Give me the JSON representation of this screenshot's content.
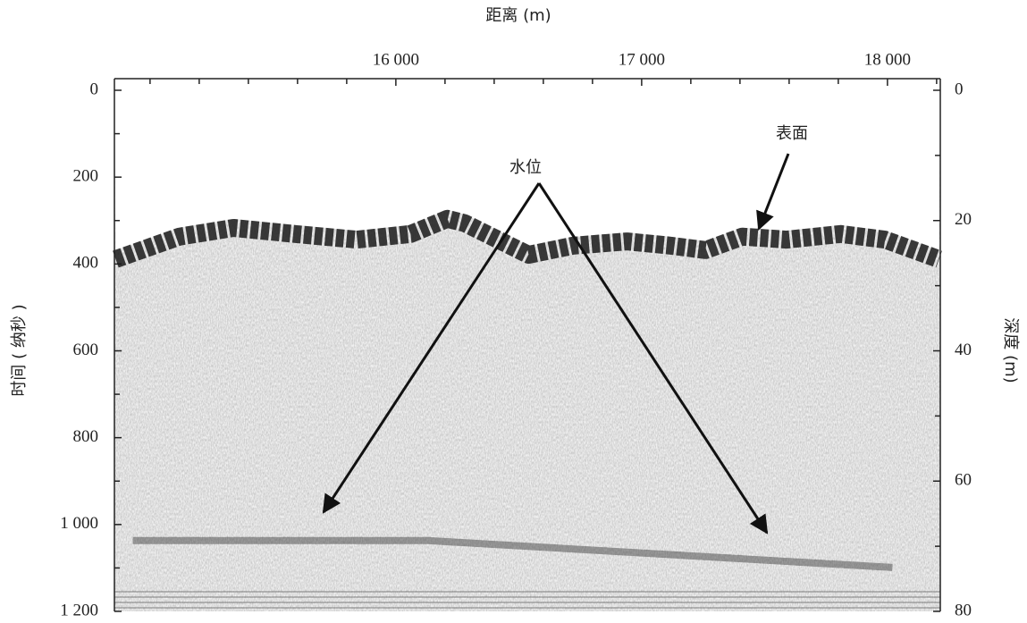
{
  "chart_data": {
    "type": "radargram",
    "x_label": "距离 (m)",
    "y_label": "时间 ( 纳秒 )",
    "y2_label": "深度 (m)",
    "xlim": [
      14855,
      18215
    ],
    "xticks": [
      {
        "value": 16000,
        "label": "16 000"
      },
      {
        "value": 17000,
        "label": "17 000"
      },
      {
        "value": 18000,
        "label": "18 000"
      }
    ],
    "xminor": [
      15000,
      15200,
      15400,
      15600,
      15800,
      16200,
      16400,
      16600,
      16800,
      17200,
      17400,
      17600,
      17800,
      18200
    ],
    "ylim": [
      0,
      1200
    ],
    "yticks": [
      0,
      200,
      400,
      600,
      800,
      {
        "value": 1000,
        "label": "1 000"
      },
      {
        "value": 1200,
        "label": "1 200"
      }
    ],
    "yminor": [
      100,
      300,
      500,
      700,
      900,
      1100
    ],
    "y2lim": [
      0,
      80
    ],
    "y2ticks": [
      0,
      20,
      40,
      60,
      80
    ],
    "y2minor": [
      10,
      30,
      50,
      70
    ],
    "surface": {
      "x": [
        14860,
        15120,
        15340,
        15590,
        15840,
        16060,
        16210,
        16280,
        16540,
        16720,
        16940,
        17120,
        17260,
        17410,
        17590,
        17810,
        17990,
        18210
      ],
      "values": [
        389,
        337,
        317,
        331,
        344,
        331,
        296,
        306,
        379,
        358,
        348,
        358,
        368,
        337,
        344,
        331,
        344,
        389
      ]
    },
    "water": {
      "x": [
        14930,
        16130,
        18020
      ],
      "values": [
        1037,
        1037,
        1099
      ]
    },
    "annotations": [
      "水位",
      "表面"
    ]
  }
}
